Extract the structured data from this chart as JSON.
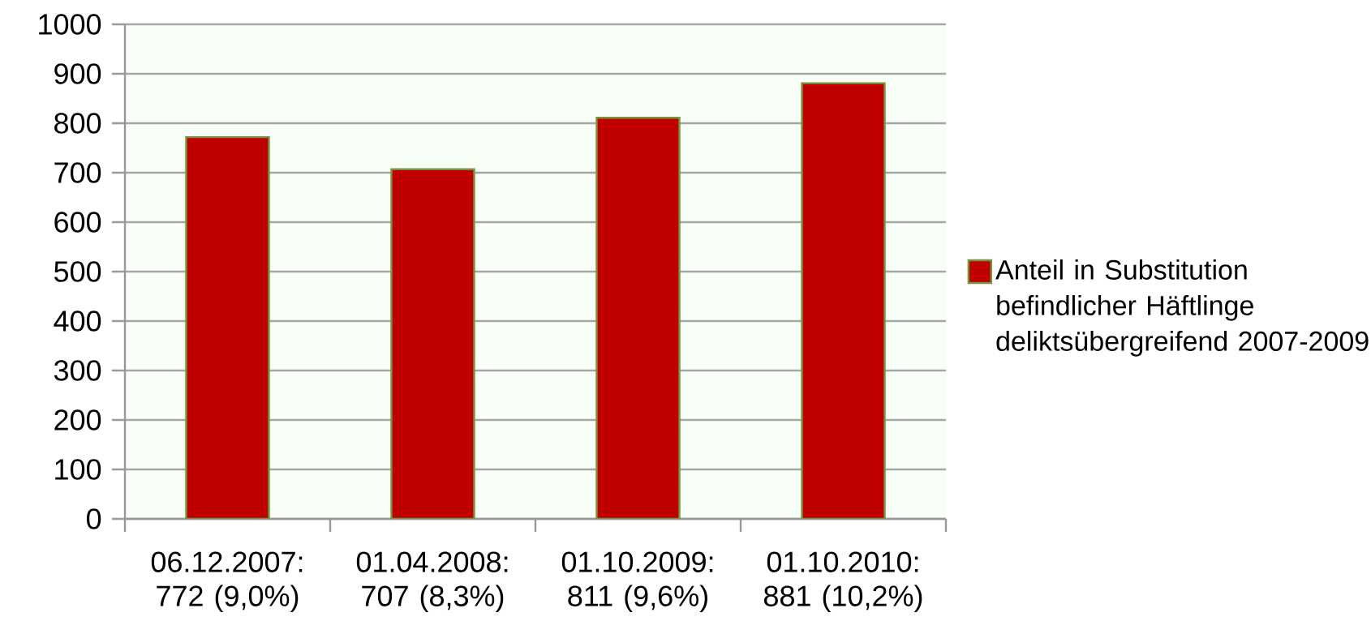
{
  "chart_data": {
    "type": "bar",
    "categories": [
      "06.12.2007: 772 (9,0%)",
      "01.04.2008: 707 (8,3%)",
      "01.10.2009: 811 (9,6%)",
      "01.10.2010: 881 (10,2%)"
    ],
    "series": [
      {
        "name": "Anteil in Substitution befindlicher Häftlinge deliktsübergreifend 2007-2009",
        "color": "#c00000",
        "values": [
          772,
          707,
          811,
          881
        ]
      }
    ],
    "ylim": [
      0,
      1000
    ],
    "yticks": [
      0,
      100,
      200,
      300,
      400,
      500,
      600,
      700,
      800,
      900,
      1000
    ],
    "grid": "y",
    "legend": "right"
  }
}
